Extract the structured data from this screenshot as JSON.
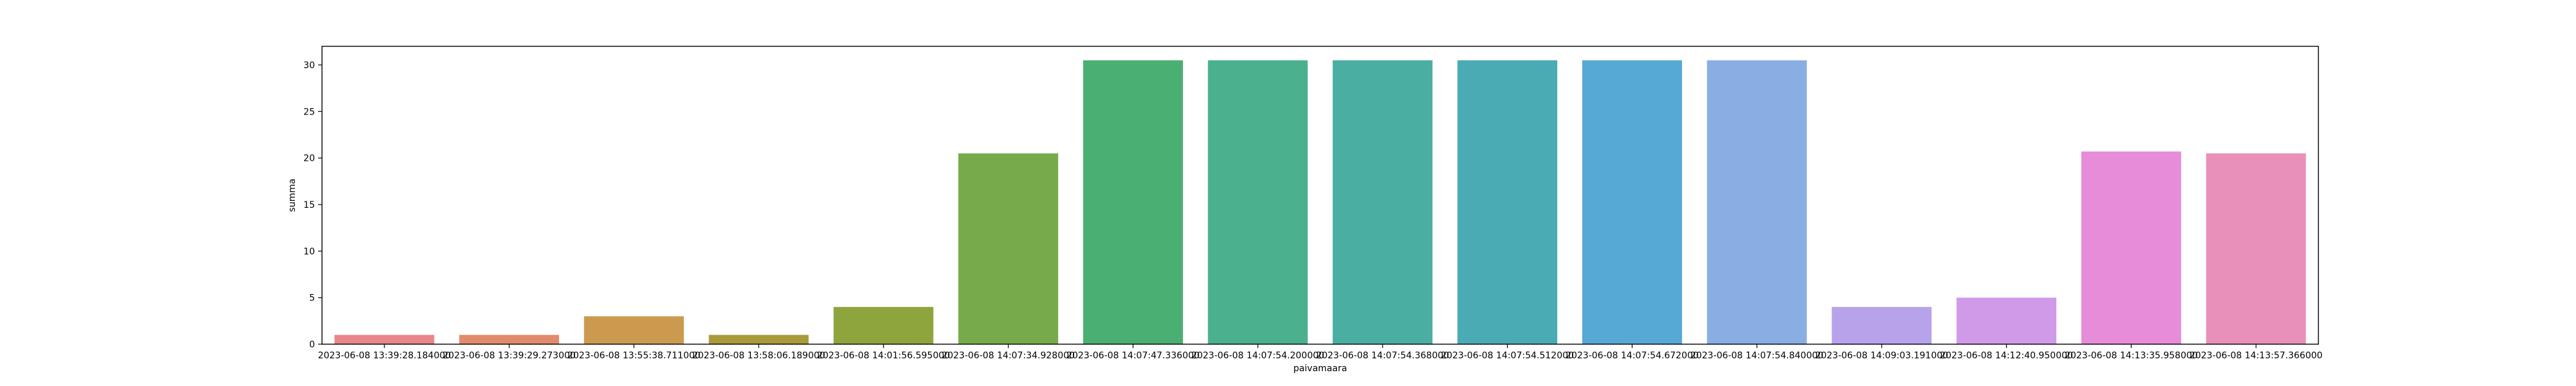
{
  "chart_data": {
    "type": "bar",
    "xlabel": "paivamaara",
    "ylabel": "summa",
    "ylim": [
      0,
      32
    ],
    "yticks": [
      0,
      5,
      10,
      15,
      20,
      25,
      30
    ],
    "grid": false,
    "categories": [
      "2023-06-08 13:39:28.184000",
      "2023-06-08 13:39:29.273000",
      "2023-06-08 13:55:38.711000",
      "2023-06-08 13:58:06.189000",
      "2023-06-08 14:01:56.595000",
      "2023-06-08 14:07:34.928000",
      "2023-06-08 14:07:47.336000",
      "2023-06-08 14:07:54.200000",
      "2023-06-08 14:07:54.368000",
      "2023-06-08 14:07:54.512000",
      "2023-06-08 14:07:54.672000",
      "2023-06-08 14:07:54.840000",
      "2023-06-08 14:09:03.191000",
      "2023-06-08 14:12:40.950000",
      "2023-06-08 14:13:35.958000",
      "2023-06-08 14:13:57.366000"
    ],
    "values": [
      1,
      1,
      3,
      1,
      4,
      20.5,
      30.5,
      30.5,
      30.5,
      30.5,
      30.5,
      30.5,
      4,
      5,
      20.7,
      20.5
    ],
    "colors": [
      "#e8868c",
      "#e28a6d",
      "#cc9a4f",
      "#a89a3a",
      "#8ea53e",
      "#77aa4a",
      "#4aaf72",
      "#4ab08e",
      "#4aaea3",
      "#4aabb5",
      "#55a9d4",
      "#88aee4",
      "#b7a3ea",
      "#d19ae8",
      "#e68cd8",
      "#e890b9"
    ]
  }
}
